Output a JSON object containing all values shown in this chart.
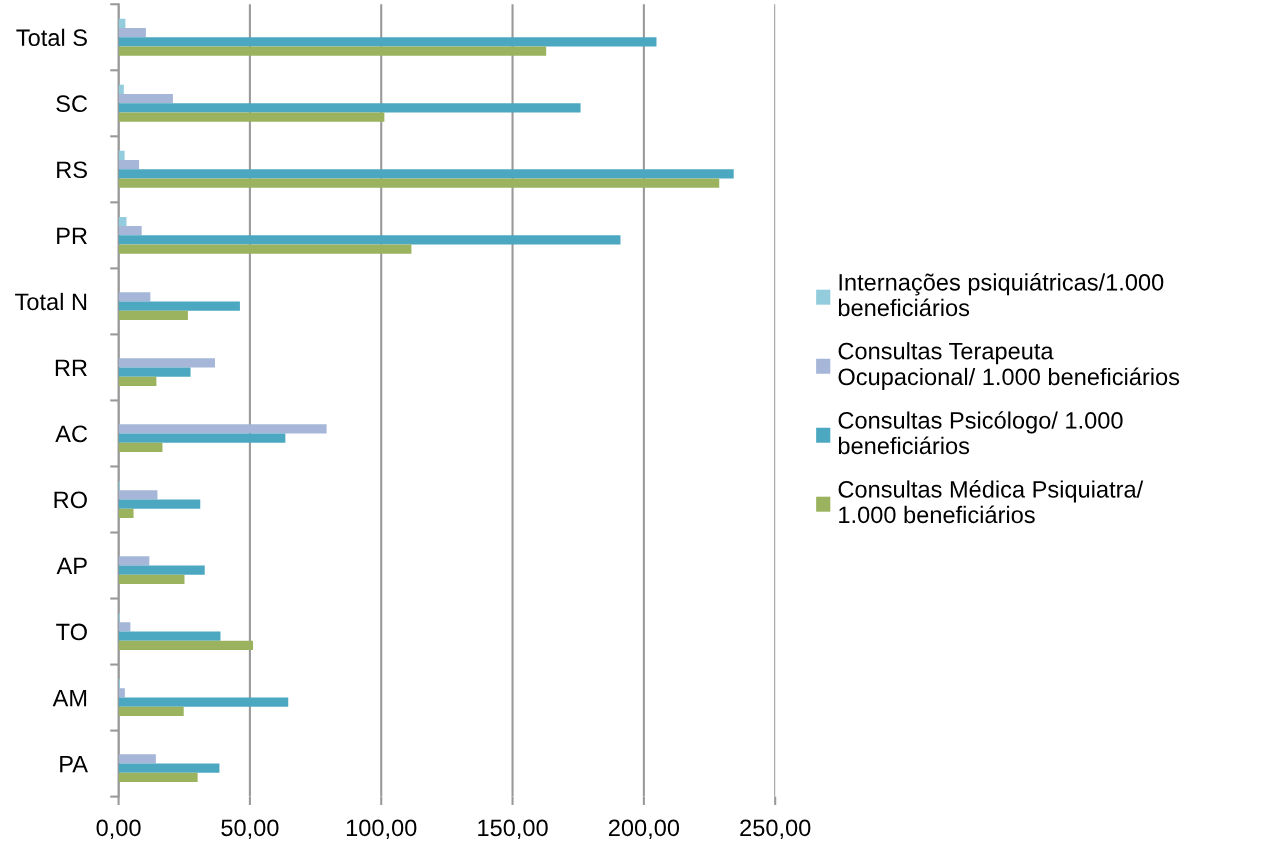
{
  "chart_data": {
    "type": "bar",
    "orientation": "horizontal",
    "categories": [
      "Total S",
      "SC",
      "RS",
      "PR",
      "Total N",
      "RR",
      "AC",
      "RO",
      "AP",
      "TO",
      "AM",
      "PA"
    ],
    "series": [
      {
        "name": "Internações psiquiátricas/1.000\nbeneficiários",
        "color": "#93cddd",
        "values": [
          2.6,
          2.0,
          2.3,
          3.0,
          null,
          null,
          null,
          0.5,
          null,
          0.5,
          0.5,
          null
        ]
      },
      {
        "name": "Consultas Terapeuta\nOcupacional/ 1.000 beneficiários",
        "color": "#a5b6d9",
        "values": [
          10.4,
          20.7,
          7.8,
          8.8,
          12.1,
          36.7,
          79.2,
          14.8,
          11.7,
          4.5,
          2.4,
          14.2
        ]
      },
      {
        "name": "Consultas Psicólogo/ 1.000\nbeneficiários",
        "color": "#4ba8c0",
        "values": [
          204.8,
          175.9,
          234.2,
          191.1,
          46.2,
          27.4,
          63.5,
          31.1,
          32.8,
          38.8,
          64.6,
          38.4
        ]
      },
      {
        "name": "Consultas Médica Psiquiatra/\n1.000 beneficiários",
        "color": "#9bb35e",
        "values": [
          162.8,
          101.2,
          228.7,
          111.5,
          26.4,
          14.4,
          16.7,
          5.7,
          25.1,
          51.2,
          24.8,
          30.1
        ]
      }
    ],
    "xlim": [
      0,
      250
    ],
    "xticks": [
      {
        "value": 0,
        "label": "0,00"
      },
      {
        "value": 50,
        "label": "50,00"
      },
      {
        "value": 100,
        "label": "100,00"
      },
      {
        "value": 150,
        "label": "150,00"
      },
      {
        "value": 200,
        "label": "200,00"
      },
      {
        "value": 250,
        "label": "250,00"
      }
    ],
    "grid": "x",
    "legend": "right"
  }
}
